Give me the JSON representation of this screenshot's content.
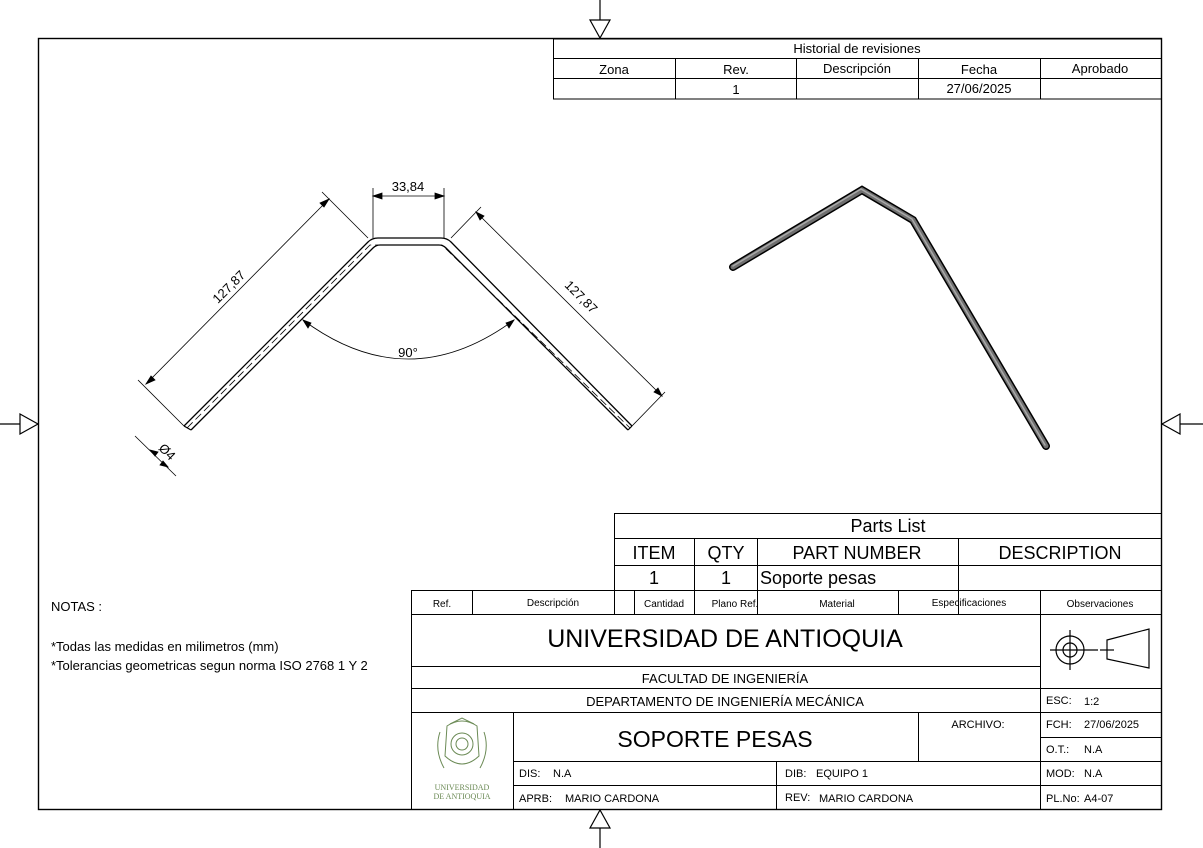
{
  "revisions": {
    "title": "Historial de revisiones",
    "headers": [
      "Zona",
      "Rev.",
      "Descripción",
      "Fecha",
      "Aprobado"
    ],
    "rows": [
      [
        "",
        "1",
        "",
        "27/06/2025",
        ""
      ]
    ]
  },
  "dimensions": {
    "top_width": "33,84",
    "left_length": "127,87",
    "right_length": "127,87",
    "angle": "90°",
    "diameter": "Ø4"
  },
  "notes": {
    "heading": "NOTAS :",
    "lines": [
      "*Todas las medidas en milimetros (mm)",
      "*Tolerancias geometricas segun norma ISO 2768 1 Y 2"
    ]
  },
  "parts_list": {
    "title": "Parts List",
    "headers": [
      "ITEM",
      "QTY",
      "PART NUMBER",
      "DESCRIPTION"
    ],
    "rows": [
      [
        "1",
        "1",
        "Soporte pesas",
        ""
      ]
    ]
  },
  "title_block": {
    "columns": [
      "Ref.",
      "Descripción",
      "Cantidad",
      "Plano Ref.",
      "Material",
      "Especificaciones",
      "Observaciones"
    ],
    "university": "UNIVERSIDAD DE ANTIOQUIA",
    "faculty": "FACULTAD DE INGENIERÍA",
    "department": "DEPARTAMENTO DE INGENIERÍA MECÁNICA",
    "drawing_title": "SOPORTE PESAS",
    "archivo_label": "ARCHIVO:",
    "logo_text_1": "UNIVERSIDAD",
    "logo_text_2": "DE ANTIOQUIA",
    "dis_label": "DIS:",
    "dis_value": "N.A",
    "dib_label": "DIB:",
    "dib_value": "EQUIPO 1",
    "aprb_label": "APRB:",
    "aprb_value": "MARIO CARDONA",
    "rev_label": "REV:",
    "rev_value": "MARIO CARDONA",
    "esc_label": "ESC:",
    "esc_value": "1:2",
    "fch_label": "FCH:",
    "fch_value": "27/06/2025",
    "ot_label": "O.T.:",
    "ot_value": "N.A",
    "mod_label": "MOD:",
    "mod_value": "N.A",
    "plno_label": "PL.No:",
    "plno_value": "A4-07"
  },
  "colors": {
    "line": "#000000",
    "logo": "#6b8a55",
    "rod": "#555555"
  }
}
